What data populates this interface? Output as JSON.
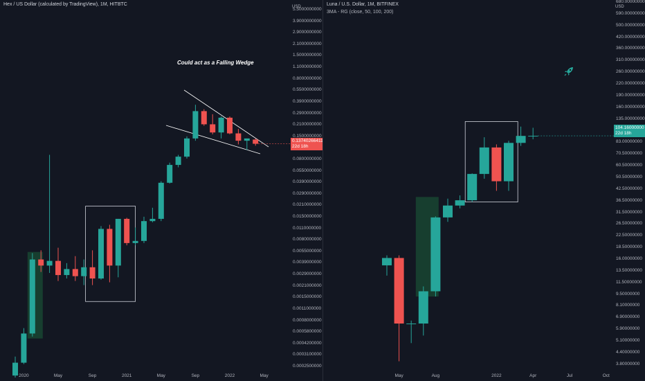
{
  "chart_data": [
    {
      "type": "candlestick",
      "title": "Hex / US Dollar (calculated by TradingView), 1M, HITBTC",
      "unit": "USD",
      "log_scale": true,
      "annotation": "Could act as a Falling Wedge",
      "x_ticks": [
        "2020",
        "May",
        "Sep",
        "2021",
        "May",
        "Sep",
        "2022",
        "May"
      ],
      "y_ticks": [
        "5.5000000000",
        "3.9000000000",
        "2.9000000000",
        "2.1000000000",
        "1.5000000000",
        "1.1000000000",
        "0.8000000000",
        "0.5500000000",
        "0.3900000000",
        "0.2900000000",
        "0.2100000000",
        "0.1500000000",
        "0.1100000000",
        "0.0800000000",
        "0.0550000000",
        "0.0390000000",
        "0.0290000000",
        "0.0210000000",
        "0.0150000000",
        "0.0110000000",
        "0.0080000000",
        "0.0055000000",
        "0.0039000000",
        "0.0029000000",
        "0.0021000000",
        "0.0015000000",
        "0.0011000000",
        "0.0008000000",
        "0.0005800000",
        "0.0004200000",
        "0.0003100000",
        "0.0002500000"
      ],
      "y_range": [
        0.00022,
        7.2
      ],
      "last_price": "0.13740266411",
      "last_price_sub": "22d 18h",
      "candles": [
        {
          "t": "2019-12",
          "o": 0.00018,
          "h": 0.00031,
          "l": 0.00017,
          "c": 0.00026
        },
        {
          "t": "2020-01",
          "o": 0.00026,
          "h": 0.0007,
          "l": 0.00025,
          "c": 0.0006
        },
        {
          "t": "2020-02",
          "o": 0.0006,
          "h": 0.006,
          "l": 0.00055,
          "c": 0.005
        },
        {
          "t": "2020-03",
          "o": 0.005,
          "h": 0.0065,
          "l": 0.0035,
          "c": 0.0042
        },
        {
          "t": "2020-04",
          "o": 0.0042,
          "h": 0.1,
          "l": 0.0034,
          "c": 0.0048
        },
        {
          "t": "2020-05",
          "o": 0.0048,
          "h": 0.007,
          "l": 0.0027,
          "c": 0.0032
        },
        {
          "t": "2020-06",
          "o": 0.0032,
          "h": 0.0045,
          "l": 0.0029,
          "c": 0.0038
        },
        {
          "t": "2020-07",
          "o": 0.0038,
          "h": 0.0055,
          "l": 0.0027,
          "c": 0.0031
        },
        {
          "t": "2020-08",
          "o": 0.0031,
          "h": 0.005,
          "l": 0.0024,
          "c": 0.004
        },
        {
          "t": "2020-09",
          "o": 0.004,
          "h": 0.0065,
          "l": 0.0024,
          "c": 0.0029
        },
        {
          "t": "2020-10",
          "o": 0.0029,
          "h": 0.013,
          "l": 0.0028,
          "c": 0.012
        },
        {
          "t": "2020-11",
          "o": 0.012,
          "h": 0.0135,
          "l": 0.0026,
          "c": 0.0042
        },
        {
          "t": "2020-12",
          "o": 0.0042,
          "h": 0.016,
          "l": 0.003,
          "c": 0.016
        },
        {
          "t": "2021-01",
          "o": 0.016,
          "h": 0.0165,
          "l": 0.0075,
          "c": 0.008
        },
        {
          "t": "2021-02",
          "o": 0.008,
          "h": 0.0125,
          "l": 0.0075,
          "c": 0.0085
        },
        {
          "t": "2021-03",
          "o": 0.0085,
          "h": 0.017,
          "l": 0.008,
          "c": 0.015
        },
        {
          "t": "2021-04",
          "o": 0.015,
          "h": 0.022,
          "l": 0.0145,
          "c": 0.016
        },
        {
          "t": "2021-05",
          "o": 0.016,
          "h": 0.047,
          "l": 0.015,
          "c": 0.045
        },
        {
          "t": "2021-06",
          "o": 0.045,
          "h": 0.08,
          "l": 0.044,
          "c": 0.075
        },
        {
          "t": "2021-07",
          "o": 0.075,
          "h": 0.1,
          "l": 0.07,
          "c": 0.095
        },
        {
          "t": "2021-08",
          "o": 0.095,
          "h": 0.17,
          "l": 0.09,
          "c": 0.16
        },
        {
          "t": "2021-09",
          "o": 0.16,
          "h": 0.42,
          "l": 0.15,
          "c": 0.35
        },
        {
          "t": "2021-10",
          "o": 0.35,
          "h": 0.37,
          "l": 0.23,
          "c": 0.24
        },
        {
          "t": "2021-11",
          "o": 0.24,
          "h": 0.32,
          "l": 0.18,
          "c": 0.19
        },
        {
          "t": "2021-12",
          "o": 0.19,
          "h": 0.3,
          "l": 0.16,
          "c": 0.29
        },
        {
          "t": "2022-01",
          "o": 0.29,
          "h": 0.3,
          "l": 0.18,
          "c": 0.185
        },
        {
          "t": "2022-02",
          "o": 0.185,
          "h": 0.21,
          "l": 0.135,
          "c": 0.15
        },
        {
          "t": "2022-03",
          "o": 0.15,
          "h": 0.16,
          "l": 0.115,
          "c": 0.16
        },
        {
          "t": "2022-04",
          "o": 0.155,
          "h": 0.16,
          "l": 0.13,
          "c": 0.1374
        }
      ]
    },
    {
      "type": "candlestick",
      "title": "Luna / U.S. Dollar, 1M, BITFINEX",
      "subtitle": "3MA - RG (close, 50, 100, 200)",
      "unit": "USD",
      "log_scale": true,
      "x_ticks": [
        "May",
        "Aug",
        "2022",
        "Apr",
        "Jul",
        "Oct"
      ],
      "y_ticks": [
        "680.00000000",
        "590.00000000",
        "500.00000000",
        "420.00000000",
        "360.00000000",
        "310.00000000",
        "260.00000000",
        "220.00000000",
        "190.00000000",
        "160.00000000",
        "135.00000000",
        "115.00000000",
        "83.00000000",
        "70.50000000",
        "60.50000000",
        "50.50000000",
        "42.50000000",
        "36.50000000",
        "31.50000000",
        "26.50000000",
        "22.50000000",
        "18.50000000",
        "16.00000000",
        "13.50000000",
        "11.50000000",
        "9.50000000",
        "8.10000000",
        "6.90000000",
        "5.90000000",
        "5.10000000",
        "4.40000000",
        "3.80000000"
      ],
      "y_range": [
        3.6,
        720
      ],
      "last_price": "104.16000000",
      "last_price_sub": "22d 18h",
      "candles": [
        {
          "t": "2021-04",
          "o": 16.0,
          "h": 18.5,
          "l": 13.8,
          "c": 17.8
        },
        {
          "t": "2021-05",
          "o": 17.8,
          "h": 18.5,
          "l": 4.0,
          "c": 6.9
        },
        {
          "t": "2021-06",
          "o": 6.9,
          "h": 7.2,
          "l": 5.2,
          "c": 6.9
        },
        {
          "t": "2021-07",
          "o": 6.9,
          "h": 11.8,
          "l": 5.8,
          "c": 11.0
        },
        {
          "t": "2021-08",
          "o": 11.0,
          "h": 32.5,
          "l": 10.2,
          "c": 32.0
        },
        {
          "t": "2021-09",
          "o": 32.0,
          "h": 42.0,
          "l": 30.0,
          "c": 38.0
        },
        {
          "t": "2021-10",
          "o": 38.0,
          "h": 44.0,
          "l": 36.5,
          "c": 41.0
        },
        {
          "t": "2021-11",
          "o": 41.0,
          "h": 60.5,
          "l": 40.0,
          "c": 60.0
        },
        {
          "t": "2021-12",
          "o": 60.0,
          "h": 102.0,
          "l": 56.0,
          "c": 88.0
        },
        {
          "t": "2022-01",
          "o": 88.0,
          "h": 92.0,
          "l": 47.0,
          "c": 54.0
        },
        {
          "t": "2022-02",
          "o": 54.0,
          "h": 97.0,
          "l": 47.0,
          "c": 94.0
        },
        {
          "t": "2022-03",
          "o": 94.0,
          "h": 119.0,
          "l": 90.0,
          "c": 104.0
        },
        {
          "t": "2022-04",
          "o": 104.0,
          "h": 117.0,
          "l": 99.0,
          "c": 104.16
        }
      ]
    }
  ],
  "colors": {
    "up": "#26a69a",
    "down": "#ef5350",
    "box_green": "#1b5e3a",
    "line": "#ffffff"
  }
}
